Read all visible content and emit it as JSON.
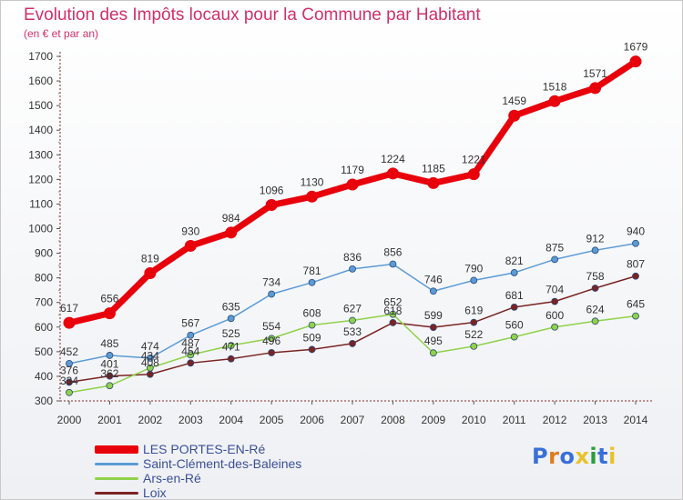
{
  "header": {
    "title": "Evolution des Impôts locaux pour la Commune par Habitant",
    "subtitle": "(en € et par an)"
  },
  "brand": {
    "text": "Proxiti",
    "letter_colors": [
      "#3a6fd8",
      "#e07b1f",
      "#3a6fd8",
      "#e8c22a",
      "#2e9c3a",
      "#3a6fd8",
      "#e8c22a"
    ]
  },
  "chart_data": {
    "type": "line",
    "title": "Evolution des Impôts locaux pour la Commune par Habitant",
    "subtitle": "(en € et par an)",
    "xlabel": "",
    "ylabel": "",
    "x": [
      "2000",
      "2001",
      "2002",
      "2003",
      "2004",
      "2005",
      "2006",
      "2007",
      "2008",
      "2009",
      "2010",
      "2011",
      "2012",
      "2013",
      "2014"
    ],
    "ylim": [
      300,
      1700
    ],
    "yticks": [
      300,
      400,
      500,
      600,
      700,
      800,
      900,
      1000,
      1100,
      1200,
      1300,
      1400,
      1500,
      1600,
      1700
    ],
    "grid": false,
    "legend_position": "bottom-left",
    "series": [
      {
        "name": "LES PORTES-EN-Ré",
        "color": "#e8000b",
        "values": [
          617,
          656,
          819,
          930,
          984,
          1096,
          1130,
          1179,
          1224,
          1185,
          1221,
          1459,
          1518,
          1571,
          1679
        ]
      },
      {
        "name": "Saint-Clément-des-Baleines",
        "color": "#5b9bd5",
        "values": [
          452,
          485,
          474,
          567,
          635,
          734,
          781,
          836,
          856,
          746,
          790,
          821,
          875,
          912,
          940
        ]
      },
      {
        "name": "Ars-en-Ré",
        "color": "#90d14a",
        "values": [
          334,
          362,
          434,
          487,
          525,
          554,
          608,
          627,
          652,
          495,
          522,
          560,
          600,
          624,
          645
        ]
      },
      {
        "name": "Loix",
        "color": "#7a2323",
        "values": [
          376,
          401,
          408,
          454,
          471,
          496,
          509,
          533,
          618,
          599,
          619,
          681,
          704,
          758,
          807
        ]
      }
    ]
  }
}
